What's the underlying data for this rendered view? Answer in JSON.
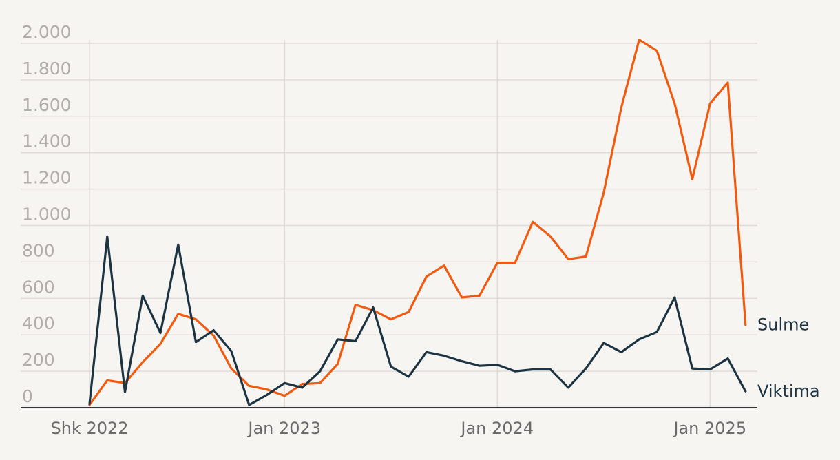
{
  "chart_data": {
    "type": "line",
    "title": "",
    "xlabel": "",
    "ylabel": "",
    "ylim": [
      0,
      2000
    ],
    "grid": true,
    "y_ticks": [
      0,
      200,
      400,
      600,
      800,
      1000,
      1200,
      1400,
      1600,
      1800,
      2000
    ],
    "y_tick_labels": [
      "0",
      "200",
      "400",
      "600",
      "800",
      "1.000",
      "1.200",
      "1.400",
      "1.600",
      "1.800",
      "2.000"
    ],
    "x_tick_labels": [
      {
        "label": "Shk 2022",
        "x": "2022-02"
      },
      {
        "label": "Jan 2023",
        "x": "2023-01"
      },
      {
        "label": "Jan 2024",
        "x": "2024-01"
      },
      {
        "label": "Jan 2025",
        "x": "2025-01"
      }
    ],
    "x": [
      "2022-02",
      "2022-03",
      "2022-04",
      "2022-05",
      "2022-06",
      "2022-07",
      "2022-08",
      "2022-09",
      "2022-10",
      "2022-11",
      "2022-12",
      "2023-01",
      "2023-02",
      "2023-03",
      "2023-04",
      "2023-05",
      "2023-06",
      "2023-07",
      "2023-08",
      "2023-09",
      "2023-10",
      "2023-11",
      "2023-12",
      "2024-01",
      "2024-02",
      "2024-03",
      "2024-04",
      "2024-05",
      "2024-06",
      "2024-07",
      "2024-08",
      "2024-09",
      "2024-10",
      "2024-11",
      "2024-12",
      "2025-01",
      "2025-02",
      "2025-03"
    ],
    "series": [
      {
        "name": "Sulme",
        "color": "#f15a0f",
        "values": [
          15,
          150,
          135,
          250,
          350,
          515,
          485,
          395,
          215,
          120,
          100,
          65,
          130,
          135,
          240,
          565,
          535,
          485,
          525,
          720,
          780,
          605,
          615,
          795,
          795,
          1020,
          940,
          815,
          830,
          1180,
          1650,
          2020,
          1960,
          1670,
          1255,
          1670,
          1785,
          455
        ]
      },
      {
        "name": "Viktima",
        "color": "#1c3342",
        "values": [
          20,
          940,
          85,
          615,
          410,
          895,
          360,
          425,
          310,
          15,
          70,
          135,
          110,
          200,
          375,
          365,
          550,
          225,
          170,
          305,
          285,
          255,
          230,
          235,
          200,
          210,
          210,
          110,
          215,
          355,
          305,
          375,
          415,
          605,
          215,
          210,
          270,
          90
        ]
      }
    ]
  }
}
